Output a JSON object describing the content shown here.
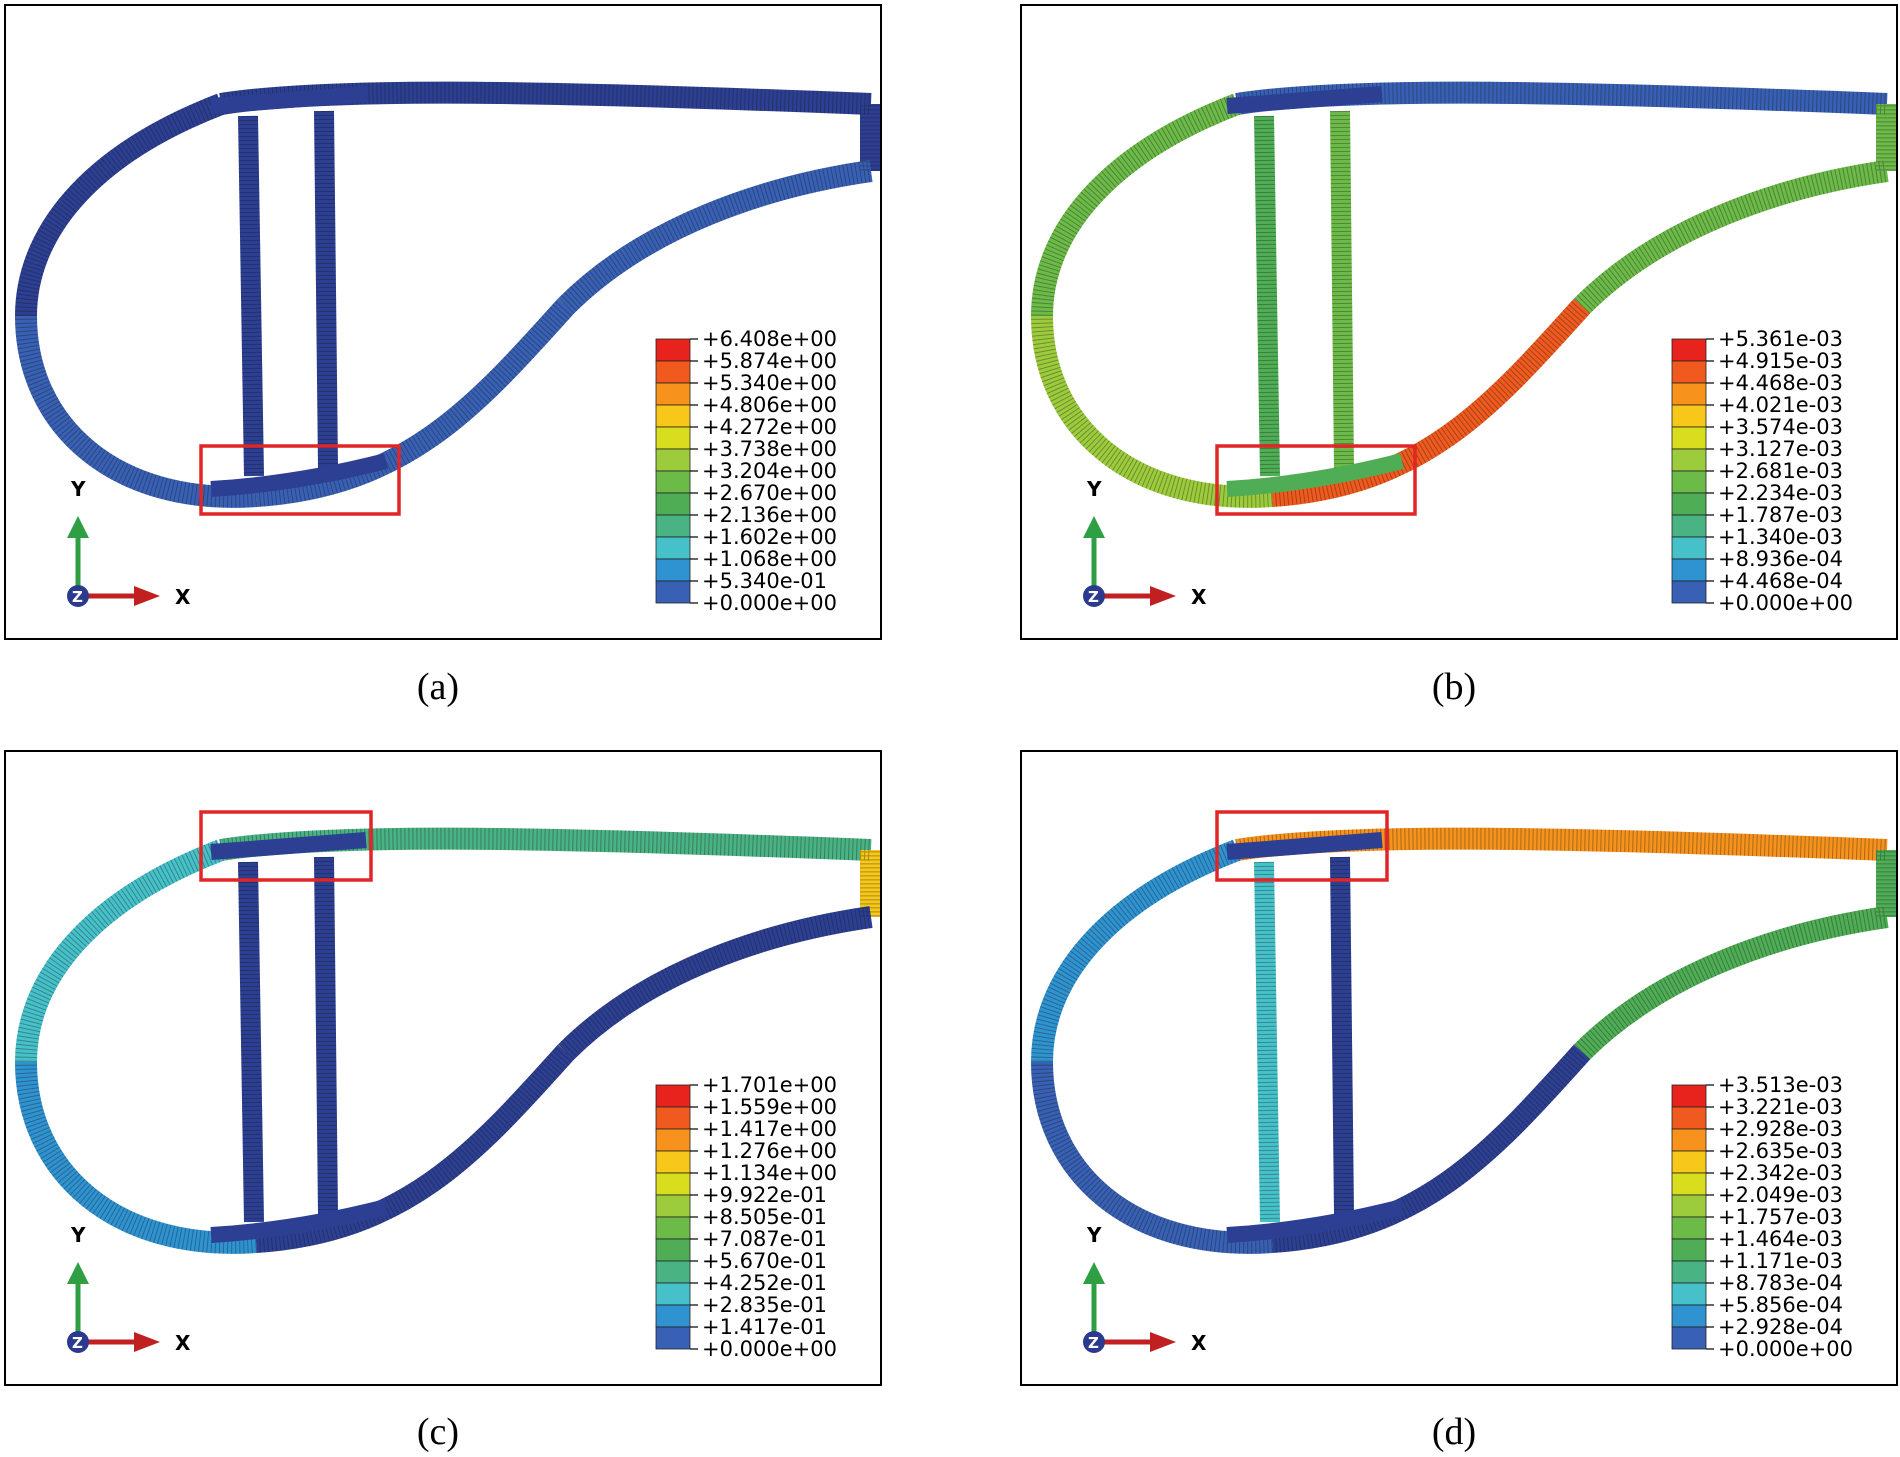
{
  "panels": [
    {
      "id": "a",
      "caption": "(a)",
      "legend": [
        "+6.408e+00",
        "+5.874e+00",
        "+5.340e+00",
        "+4.806e+00",
        "+4.272e+00",
        "+3.738e+00",
        "+3.204e+00",
        "+2.670e+00",
        "+2.136e+00",
        "+1.602e+00",
        "+1.068e+00",
        "+5.340e-01",
        "+0.000e+00"
      ],
      "highlight": "bottom-spar-caps"
    },
    {
      "id": "b",
      "caption": "(b)",
      "legend": [
        "+5.361e-03",
        "+4.915e-03",
        "+4.468e-03",
        "+4.021e-03",
        "+3.574e-03",
        "+3.127e-03",
        "+2.681e-03",
        "+2.234e-03",
        "+1.787e-03",
        "+1.340e-03",
        "+8.936e-04",
        "+4.468e-04",
        "+0.000e+00"
      ],
      "highlight": "bottom-spar-caps"
    },
    {
      "id": "c",
      "caption": "(c)",
      "legend": [
        "+1.701e+00",
        "+1.559e+00",
        "+1.417e+00",
        "+1.276e+00",
        "+1.134e+00",
        "+9.922e-01",
        "+8.505e-01",
        "+7.087e-01",
        "+5.670e-01",
        "+4.252e-01",
        "+2.835e-01",
        "+1.417e-01",
        "+0.000e+00"
      ],
      "highlight": "top-spar-caps"
    },
    {
      "id": "d",
      "caption": "(d)",
      "legend": [
        "+3.513e-03",
        "+3.221e-03",
        "+2.928e-03",
        "+2.635e-03",
        "+2.342e-03",
        "+2.049e-03",
        "+1.757e-03",
        "+1.464e-03",
        "+1.171e-03",
        "+8.783e-04",
        "+5.856e-04",
        "+2.928e-04",
        "+0.000e+00"
      ],
      "highlight": "top-spar-caps"
    }
  ],
  "axes": {
    "x_label": "X",
    "y_label": "Y",
    "z_label": "Z"
  },
  "colors": {
    "scale": [
      "#e8221d",
      "#f05a1e",
      "#f7921c",
      "#f7c81a",
      "#d8dd1e",
      "#9ccc3c",
      "#6cbb48",
      "#4fae55",
      "#49b383",
      "#46c1c9",
      "#2f93d1",
      "#3860b4",
      "#2c3f93"
    ],
    "highlight_box": "#e02626",
    "x_arrow": "#c02020",
    "y_arrow": "#2ea043",
    "z_dot": "#2b3a8f"
  }
}
